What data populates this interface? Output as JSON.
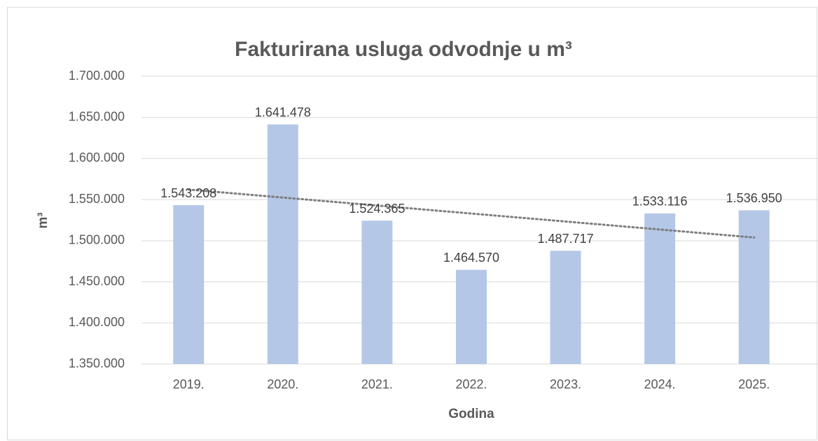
{
  "chart_data": {
    "type": "bar",
    "title": "Fakturirana usluga odvodnje u  m³",
    "x_label": "Godina",
    "y_label": "m³",
    "categories": [
      "2019.",
      "2020.",
      "2021.",
      "2022.",
      "2023.",
      "2024.",
      "2025."
    ],
    "values": [
      1543208,
      1641478,
      1524365,
      1464570,
      1487717,
      1533116,
      1536950
    ],
    "value_labels": [
      "1.543.208",
      "1.641.478",
      "1.524.365",
      "1.464.570",
      "1.487.717",
      "1.533.116",
      "1.536.950"
    ],
    "color": "#b4c7e7",
    "ylim": [
      1350000,
      1700000
    ],
    "yticks": [
      {
        "value": 1350000,
        "label": "1.350.000"
      },
      {
        "value": 1400000,
        "label": "1.400.000"
      },
      {
        "value": 1450000,
        "label": "1.450.000"
      },
      {
        "value": 1500000,
        "label": "1.500.000"
      },
      {
        "value": 1550000,
        "label": "1.550.000"
      },
      {
        "value": 1600000,
        "label": "1.600.000"
      },
      {
        "value": 1650000,
        "label": "1.650.000"
      },
      {
        "value": 1700000,
        "label": "1.700.000"
      }
    ],
    "grid": true,
    "trendline": "linear",
    "trendline_color": "#7f7f7f"
  }
}
